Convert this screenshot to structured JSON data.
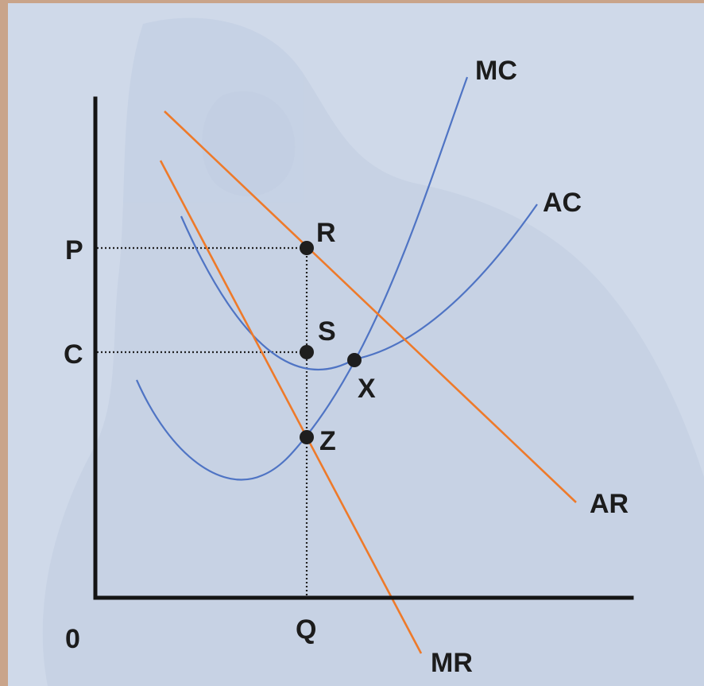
{
  "diagram": {
    "origin_label": "0",
    "price_labels": {
      "P": "P",
      "C": "C"
    },
    "quantity_label": "Q",
    "curves": {
      "mc": {
        "label": "MC",
        "color": "#4f74c4"
      },
      "ac": {
        "label": "AC",
        "color": "#4f74c4"
      },
      "ar": {
        "label": "AR",
        "color": "#ee7a2a"
      },
      "mr": {
        "label": "MR",
        "color": "#ee7a2a"
      }
    },
    "points": {
      "R": "R",
      "S": "S",
      "X": "X",
      "Z": "Z"
    }
  }
}
